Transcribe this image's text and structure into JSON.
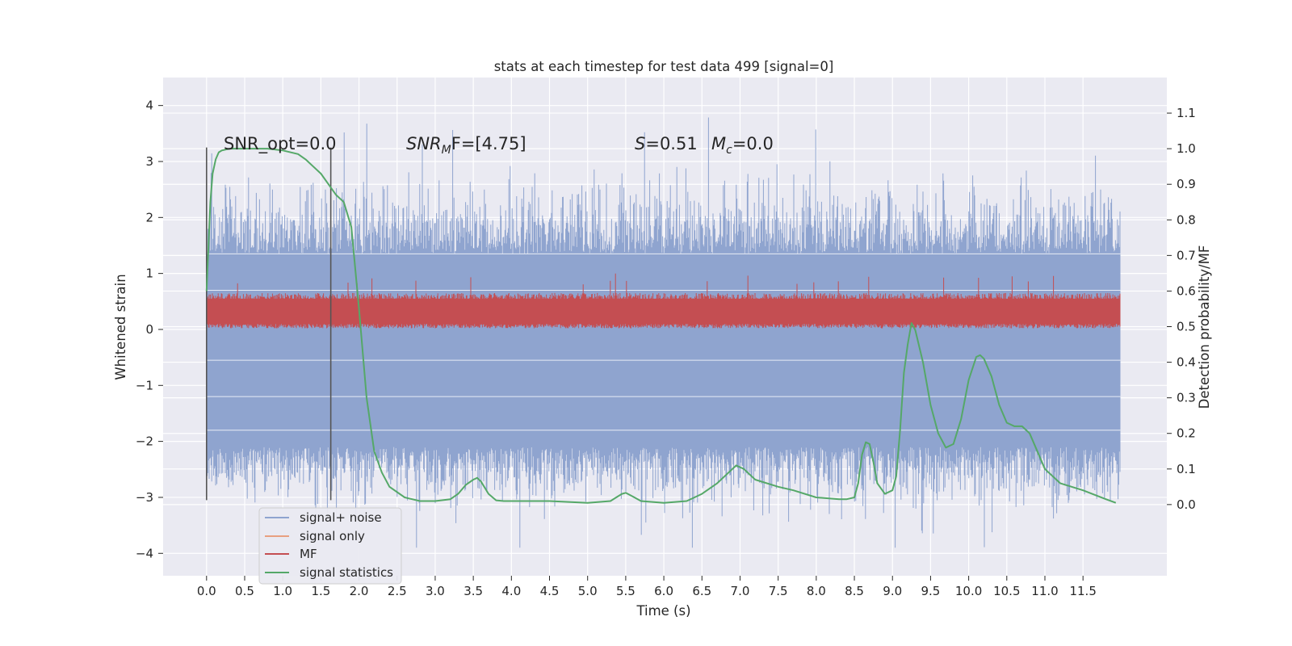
{
  "chart_data": {
    "type": "line",
    "title": "stats at each timestep for test data 499 [signal=0]",
    "xlabel": "Time (s)",
    "ylabel": "Whitened strain",
    "y2label": "Detection probability/MF",
    "xlim": [
      -0.57,
      12.6
    ],
    "ylim": [
      -4.4,
      4.5
    ],
    "y2lim": [
      -0.2,
      1.2
    ],
    "grid": true,
    "legend_placement": "lower-left",
    "x_ticks": [
      "0.0",
      "0.5",
      "1.0",
      "1.5",
      "2.0",
      "2.5",
      "3.0",
      "3.5",
      "4.0",
      "4.5",
      "5.0",
      "5.5",
      "6.0",
      "6.5",
      "7.0",
      "7.5",
      "8.0",
      "8.5",
      "9.0",
      "9.5",
      "10.0",
      "10.5",
      "11.0",
      "11.5"
    ],
    "y_ticks": [
      "4",
      "3",
      "2",
      "1",
      "0",
      "−1",
      "−2",
      "−3",
      "−4"
    ],
    "y2_ticks": [
      "1.1",
      "1.0",
      "0.9",
      "0.8",
      "0.7",
      "0.6",
      "0.5",
      "0.4",
      "0.3",
      "0.2",
      "0.1",
      "0.0"
    ],
    "annotations": {
      "snr_opt": "SNR_opt=0.0",
      "snr_mf_main": "SNR",
      "snr_mf_sub": "M",
      "snr_mf_rest": "F=[4.75]",
      "s_main": "S",
      "s_rest": "=0.51",
      "mc_main": "M",
      "mc_sub": "c",
      "mc_rest": "=0.0"
    },
    "vertical_markers": [
      0.0,
      1.63
    ],
    "series": [
      {
        "name": "signal+ noise",
        "color": "#8fa4cf",
        "x_range": [
          0.0,
          11.99
        ],
        "envelope_upper": 1.35,
        "envelope_lower": -2.1,
        "max": 4.1,
        "min": -3.9
      },
      {
        "name": "signal only",
        "color": "#e8a080",
        "values": []
      },
      {
        "name": "MF",
        "color": "#c44e52",
        "x_range": [
          0.0,
          11.99
        ],
        "typical_low": 0.1,
        "typical_high": 0.65,
        "max": 1.0,
        "min": 0.0
      },
      {
        "name": "signal statistics",
        "color": "#55a868",
        "axis": "right",
        "x": [
          0.0,
          0.05,
          0.08,
          0.12,
          0.16,
          0.2,
          0.3,
          0.5,
          0.8,
          1.0,
          1.2,
          1.3,
          1.4,
          1.5,
          1.6,
          1.7,
          1.8,
          1.9,
          2.0,
          2.1,
          2.2,
          2.3,
          2.4,
          2.6,
          2.8,
          3.0,
          3.2,
          3.3,
          3.4,
          3.5,
          3.55,
          3.6,
          3.7,
          3.8,
          3.9,
          4.0,
          4.5,
          5.0,
          5.3,
          5.45,
          5.5,
          5.6,
          5.7,
          6.0,
          6.3,
          6.5,
          6.7,
          6.85,
          6.95,
          7.05,
          7.2,
          7.5,
          7.7,
          8.0,
          8.3,
          8.4,
          8.5,
          8.55,
          8.6,
          8.65,
          8.7,
          8.75,
          8.8,
          8.9,
          9.0,
          9.05,
          9.1,
          9.15,
          9.2,
          9.25,
          9.3,
          9.4,
          9.5,
          9.6,
          9.7,
          9.8,
          9.9,
          10.0,
          10.1,
          10.15,
          10.2,
          10.3,
          10.4,
          10.5,
          10.6,
          10.7,
          10.8,
          10.9,
          11.0,
          11.2,
          11.5,
          11.8,
          11.93
        ],
        "values": [
          0.6,
          0.85,
          0.93,
          0.97,
          0.99,
          0.995,
          1.0,
          1.0,
          1.0,
          0.995,
          0.985,
          0.97,
          0.95,
          0.93,
          0.9,
          0.87,
          0.85,
          0.78,
          0.55,
          0.3,
          0.15,
          0.09,
          0.05,
          0.02,
          0.01,
          0.01,
          0.015,
          0.03,
          0.055,
          0.07,
          0.075,
          0.065,
          0.03,
          0.012,
          0.01,
          0.01,
          0.01,
          0.005,
          0.01,
          0.03,
          0.033,
          0.022,
          0.01,
          0.005,
          0.01,
          0.03,
          0.06,
          0.09,
          0.11,
          0.1,
          0.07,
          0.05,
          0.04,
          0.02,
          0.015,
          0.015,
          0.02,
          0.06,
          0.14,
          0.175,
          0.17,
          0.12,
          0.06,
          0.03,
          0.04,
          0.08,
          0.21,
          0.37,
          0.45,
          0.51,
          0.49,
          0.4,
          0.28,
          0.2,
          0.16,
          0.17,
          0.24,
          0.35,
          0.415,
          0.42,
          0.41,
          0.36,
          0.28,
          0.23,
          0.22,
          0.22,
          0.2,
          0.15,
          0.1,
          0.06,
          0.04,
          0.015,
          0.005
        ]
      }
    ]
  }
}
